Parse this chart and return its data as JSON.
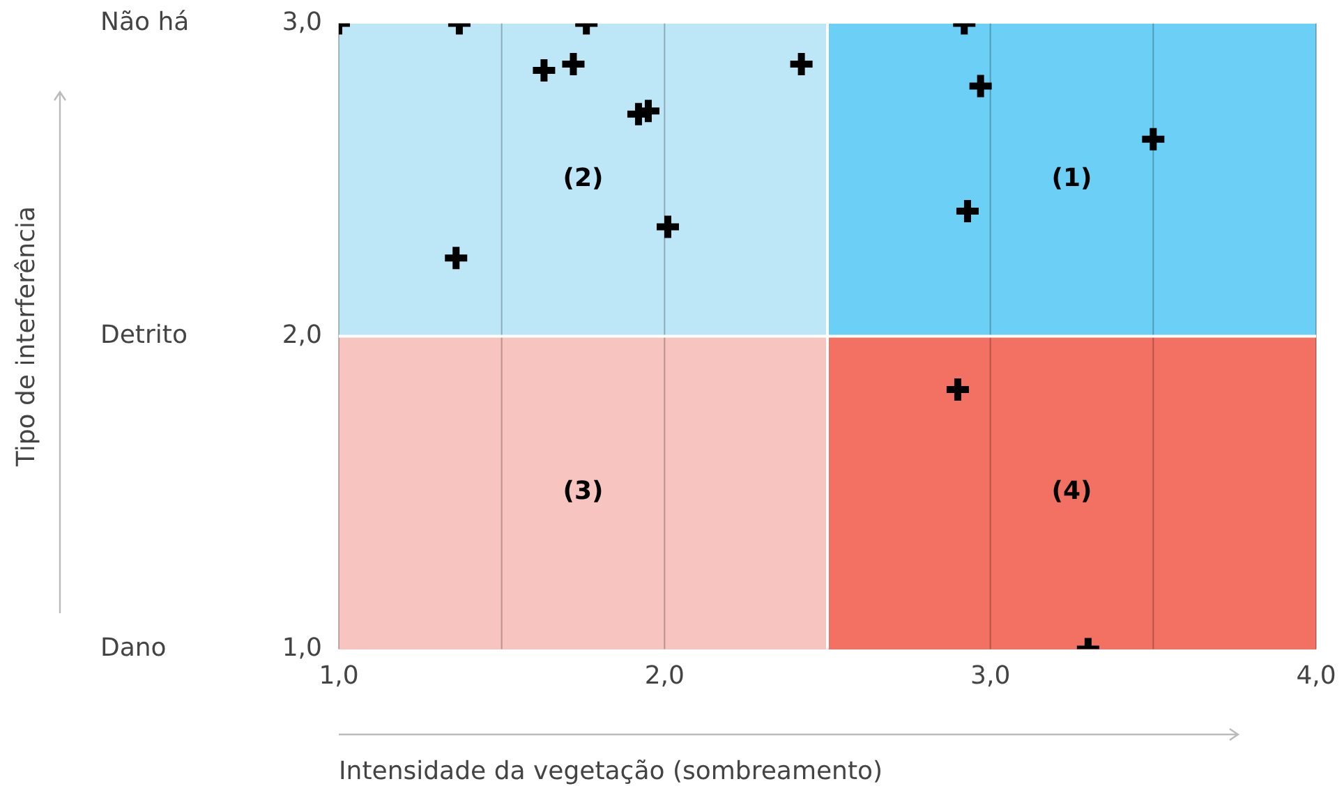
{
  "chart_data": {
    "type": "scatter",
    "xlabel": "Intensidade da vegetação (sombreamento)",
    "series": [
      {
        "color": "#000000",
        "x": [
          1.0,
          1.37,
          1.76,
          2.92,
          1.63,
          1.72,
          2.42,
          2.97,
          1.92,
          1.95,
          3.5,
          2.93,
          2.01,
          1.36,
          2.9,
          3.3
        ],
        "values": [
          3.0,
          3.0,
          3.0,
          3.0,
          2.85,
          2.87,
          2.87,
          2.8,
          2.71,
          2.72,
          2.63,
          2.4,
          2.35,
          2.25,
          1.83,
          1.0
        ]
      }
    ],
    "xlim": [
      1,
      4
    ],
    "xticks": [
      {
        "value": 1,
        "label": "1,0"
      },
      {
        "value": 1.5,
        "label": null
      },
      {
        "value": 2,
        "label": "2,0"
      },
      {
        "value": 3,
        "label": "3,0"
      },
      {
        "value": 3.5,
        "label": null
      },
      {
        "value": 4,
        "label": "4,0"
      }
    ],
    "ylim": [
      1,
      3
    ],
    "yticks": [
      {
        "value": 1,
        "label": "1,0"
      },
      {
        "value": 2,
        "label": "2,0"
      },
      {
        "value": 3,
        "label": "3,0"
      }
    ],
    "ref_lines": [
      {
        "axis": "x",
        "value": 2.5,
        "color": "#ffffff"
      },
      {
        "axis": "y",
        "value": 2,
        "color": "#ffffff"
      }
    ],
    "annotations": [
      "(2)",
      "(1)",
      "(3)",
      "(4)",
      "Dano",
      "Detrito",
      "Não há",
      "Tipo de interferência"
    ],
    "grid": "x",
    "marker": "cross",
    "legend": false
  }
}
